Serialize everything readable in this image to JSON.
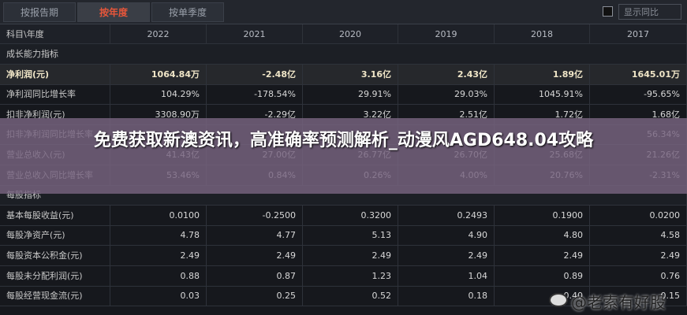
{
  "tabs": [
    "按报告期",
    "按年度",
    "按单季度"
  ],
  "active_tab": 1,
  "toggle": "显示同比",
  "table": {
    "header": [
      "科目\\年度",
      "2022",
      "2021",
      "2020",
      "2019",
      "2018",
      "2017"
    ],
    "more": "»",
    "rows": [
      {
        "label": "成长能力指标",
        "section": true
      },
      {
        "label": "净利润(元)",
        "highlight": true,
        "cells": [
          "1064.84万",
          "-2.48亿",
          "3.16亿",
          "2.43亿",
          "1.89亿",
          "1645.01万"
        ]
      },
      {
        "label": "净利润同比增长率",
        "cells": [
          "104.29%",
          "-178.54%",
          "29.91%",
          "29.03%",
          "1045.91%",
          "-95.65%"
        ]
      },
      {
        "label": "扣非净利润(元)",
        "cells": [
          "3308.90万",
          "-2.29亿",
          "3.22亿",
          "2.51亿",
          "1.72亿",
          "1.68亿"
        ]
      },
      {
        "label": "扣非净利润同比增长率",
        "cells": [
          null,
          null,
          null,
          null,
          null,
          "56.34%"
        ]
      },
      {
        "label": "营业总收入(元)",
        "cells": [
          "41.43亿",
          "27.00亿",
          "26.77亿",
          "26.70亿",
          "25.68亿",
          "21.26亿"
        ]
      },
      {
        "label": "营业总收入同比增长率",
        "cells": [
          "53.46%",
          "0.84%",
          "0.26%",
          "4.00%",
          "20.76%",
          "-2.31%"
        ]
      },
      {
        "label": "每股指标",
        "section": true
      },
      {
        "label": "基本每股收益(元)",
        "cells": [
          "0.0100",
          "-0.2500",
          "0.3200",
          "0.2493",
          "0.1900",
          "0.0200"
        ]
      },
      {
        "label": "每股净资产(元)",
        "cells": [
          "4.78",
          "4.77",
          "5.13",
          "4.90",
          "4.80",
          "4.58"
        ]
      },
      {
        "label": "每股资本公积金(元)",
        "cells": [
          "2.49",
          "2.49",
          "2.49",
          "2.49",
          "2.49",
          "2.49"
        ]
      },
      {
        "label": "每股未分配利润(元)",
        "cells": [
          "0.88",
          "0.87",
          "1.23",
          "1.04",
          "0.89",
          "0.76"
        ]
      },
      {
        "label": "每股经营现金流(元)",
        "cells": [
          "0.03",
          "0.25",
          "0.52",
          "0.18",
          "0.40",
          "0.15"
        ]
      }
    ]
  },
  "overlay": {
    "title": "免费获取新澳资讯，高准确率预测解析_动漫风AGD648.04攻略"
  },
  "watermark": "@老索有好股"
}
